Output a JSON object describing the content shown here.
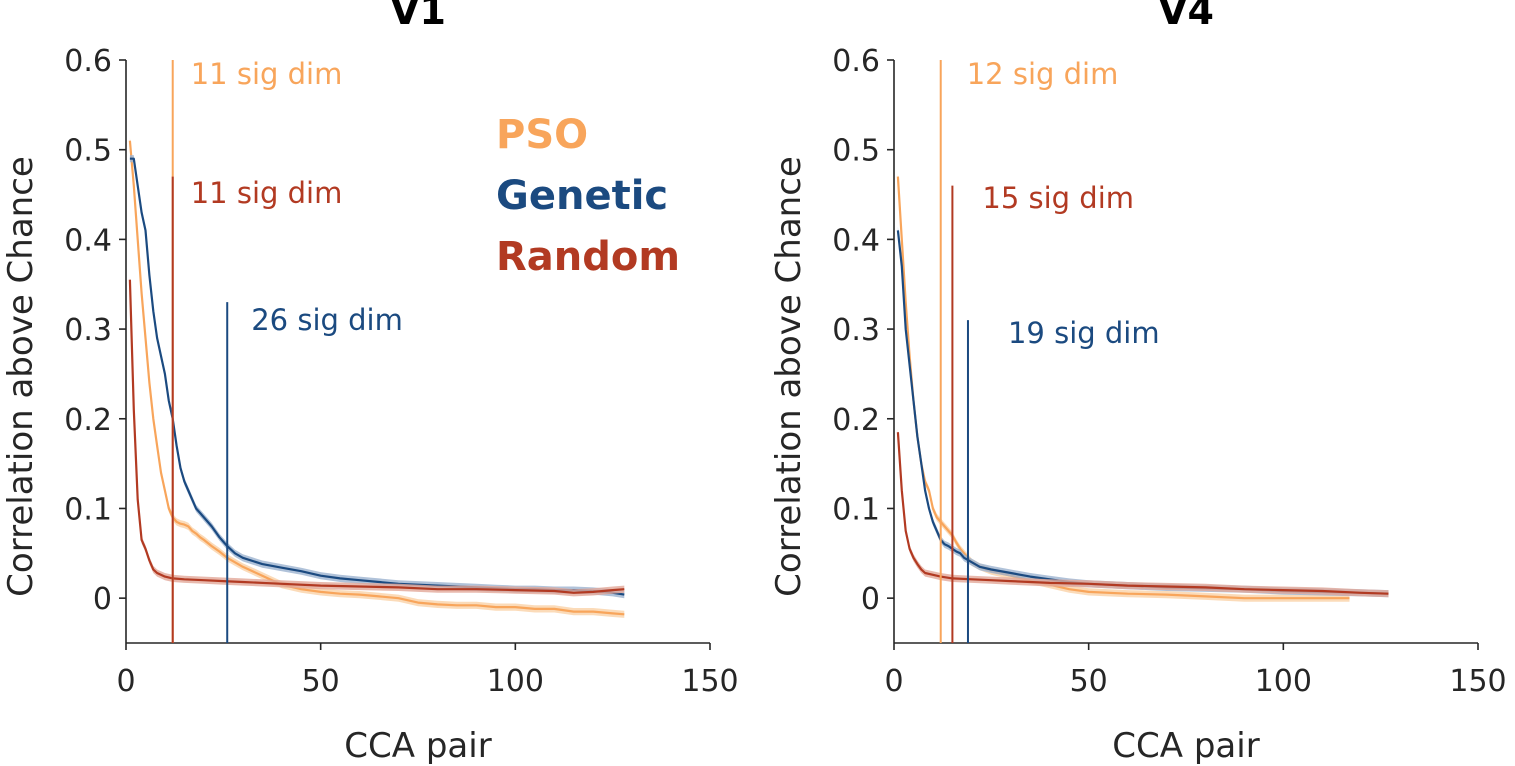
{
  "colors": {
    "PSO": "#F8A55B",
    "Genetic": "#1B4A80",
    "Random": "#B23A22",
    "PSO_band": "#FAD2A8",
    "Genetic_band": "#9CB3CF",
    "Random_band": "#E2A899"
  },
  "legend": {
    "PSO": "PSO",
    "Genetic": "Genetic",
    "Random": "Random"
  },
  "chart_data": [
    {
      "type": "line",
      "title": "V1",
      "xlabel": "CCA pair",
      "ylabel": "Correlation above Chance",
      "xlim": [
        0,
        150
      ],
      "ylim": [
        -0.05,
        0.6
      ],
      "xticks": [
        "0",
        "50",
        "100",
        "150"
      ],
      "yticks": [
        "0",
        "0.1",
        "0.2",
        "0.3",
        "0.4",
        "0.5",
        "0.6"
      ],
      "grid": false,
      "legend_position": "top-right",
      "series": [
        {
          "name": "PSO",
          "x": [
            1,
            2,
            3,
            4,
            5,
            6,
            7,
            8,
            9,
            10,
            11,
            12,
            13,
            14,
            15,
            16,
            17,
            18,
            19,
            20,
            22,
            24,
            26,
            28,
            30,
            35,
            40,
            45,
            50,
            55,
            60,
            65,
            70,
            75,
            80,
            85,
            90,
            95,
            100,
            105,
            110,
            115,
            120,
            125,
            128
          ],
          "y": [
            0.51,
            0.46,
            0.4,
            0.34,
            0.29,
            0.24,
            0.2,
            0.17,
            0.14,
            0.12,
            0.1,
            0.09,
            0.085,
            0.083,
            0.082,
            0.08,
            0.075,
            0.072,
            0.068,
            0.065,
            0.058,
            0.052,
            0.045,
            0.04,
            0.035,
            0.025,
            0.015,
            0.01,
            0.007,
            0.005,
            0.004,
            0.002,
            0.0,
            -0.005,
            -0.007,
            -0.008,
            -0.008,
            -0.01,
            -0.01,
            -0.012,
            -0.012,
            -0.015,
            -0.015,
            -0.017,
            -0.018
          ]
        },
        {
          "name": "Genetic",
          "x": [
            1,
            2,
            3,
            4,
            5,
            6,
            7,
            8,
            9,
            10,
            11,
            12,
            13,
            14,
            15,
            16,
            17,
            18,
            19,
            20,
            22,
            24,
            26,
            28,
            30,
            35,
            40,
            45,
            50,
            55,
            60,
            65,
            70,
            75,
            80,
            85,
            90,
            95,
            100,
            105,
            110,
            115,
            120,
            125,
            128
          ],
          "y": [
            0.49,
            0.49,
            0.46,
            0.43,
            0.41,
            0.36,
            0.32,
            0.29,
            0.27,
            0.25,
            0.22,
            0.2,
            0.17,
            0.145,
            0.13,
            0.12,
            0.11,
            0.1,
            0.095,
            0.09,
            0.08,
            0.068,
            0.058,
            0.05,
            0.045,
            0.038,
            0.034,
            0.03,
            0.025,
            0.022,
            0.02,
            0.018,
            0.016,
            0.015,
            0.014,
            0.013,
            0.012,
            0.011,
            0.01,
            0.01,
            0.009,
            0.009,
            0.008,
            0.006,
            0.004
          ]
        },
        {
          "name": "Random",
          "x": [
            1,
            2,
            3,
            4,
            5,
            6,
            7,
            8,
            10,
            12,
            15,
            20,
            25,
            30,
            40,
            50,
            60,
            70,
            80,
            90,
            100,
            110,
            115,
            120,
            125,
            128
          ],
          "y": [
            0.355,
            0.21,
            0.11,
            0.065,
            0.055,
            0.042,
            0.032,
            0.028,
            0.024,
            0.022,
            0.021,
            0.02,
            0.019,
            0.018,
            0.016,
            0.014,
            0.013,
            0.012,
            0.01,
            0.01,
            0.009,
            0.008,
            0.006,
            0.007,
            0.009,
            0.01
          ]
        }
      ],
      "annotations": [
        {
          "text": "11 sig dim",
          "x": 12,
          "ymax": 0.6,
          "series": "PSO"
        },
        {
          "text": "11 sig dim",
          "x": 12,
          "ymax": 0.47,
          "series": "Random"
        },
        {
          "text": "26 sig dim",
          "x": 26,
          "ymax": 0.33,
          "series": "Genetic"
        }
      ]
    },
    {
      "type": "line",
      "title": "V4",
      "xlabel": "CCA pair",
      "ylabel": "Correlation above Chance",
      "xlim": [
        0,
        150
      ],
      "ylim": [
        -0.05,
        0.6
      ],
      "xticks": [
        "0",
        "50",
        "100",
        "150"
      ],
      "yticks": [
        "0",
        "0.1",
        "0.2",
        "0.3",
        "0.4",
        "0.5",
        "0.6"
      ],
      "grid": false,
      "series": [
        {
          "name": "PSO",
          "x": [
            1,
            2,
            3,
            4,
            5,
            6,
            7,
            8,
            9,
            10,
            11,
            12,
            13,
            14,
            15,
            16,
            17,
            18,
            20,
            22,
            25,
            30,
            35,
            40,
            45,
            50,
            60,
            70,
            80,
            90,
            100,
            110,
            117
          ],
          "y": [
            0.47,
            0.4,
            0.33,
            0.27,
            0.22,
            0.18,
            0.15,
            0.13,
            0.12,
            0.1,
            0.09,
            0.085,
            0.08,
            0.075,
            0.07,
            0.062,
            0.055,
            0.05,
            0.04,
            0.035,
            0.03,
            0.025,
            0.02,
            0.015,
            0.01,
            0.007,
            0.005,
            0.004,
            0.002,
            0.0,
            0.0,
            0.0,
            0.0
          ]
        },
        {
          "name": "Genetic",
          "x": [
            1,
            2,
            3,
            4,
            5,
            6,
            7,
            8,
            9,
            10,
            11,
            12,
            13,
            14,
            15,
            16,
            17,
            18,
            20,
            22,
            25,
            30,
            35,
            40,
            45,
            50,
            60,
            70,
            80,
            90,
            100,
            110,
            120,
            127
          ],
          "y": [
            0.41,
            0.37,
            0.3,
            0.26,
            0.22,
            0.18,
            0.15,
            0.12,
            0.1,
            0.085,
            0.075,
            0.065,
            0.06,
            0.058,
            0.055,
            0.052,
            0.05,
            0.045,
            0.04,
            0.035,
            0.032,
            0.028,
            0.024,
            0.021,
            0.018,
            0.016,
            0.014,
            0.012,
            0.011,
            0.01,
            0.008,
            0.007,
            0.006,
            0.005
          ]
        },
        {
          "name": "Random",
          "x": [
            1,
            2,
            3,
            4,
            5,
            6,
            7,
            8,
            10,
            12,
            15,
            20,
            25,
            30,
            40,
            50,
            60,
            70,
            80,
            90,
            100,
            110,
            120,
            127
          ],
          "y": [
            0.185,
            0.12,
            0.075,
            0.055,
            0.045,
            0.038,
            0.032,
            0.028,
            0.026,
            0.024,
            0.022,
            0.021,
            0.02,
            0.019,
            0.017,
            0.016,
            0.014,
            0.013,
            0.012,
            0.01,
            0.009,
            0.008,
            0.006,
            0.005
          ]
        }
      ],
      "annotations": [
        {
          "text": "12 sig dim",
          "x": 12,
          "ymax": 0.6,
          "series": "PSO"
        },
        {
          "text": "15 sig dim",
          "x": 15,
          "ymax": 0.46,
          "series": "Random"
        },
        {
          "text": "19 sig dim",
          "x": 19,
          "ymax": 0.31,
          "series": "Genetic"
        }
      ]
    }
  ]
}
